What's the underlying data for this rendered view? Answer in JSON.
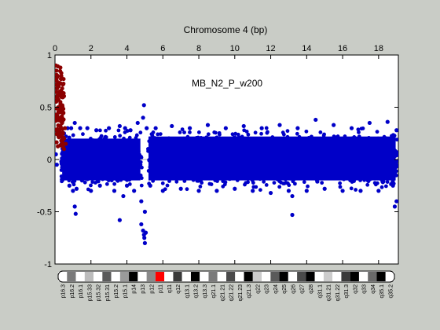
{
  "chart_data": {
    "type": "scatter",
    "title": "Chromosome 4 (bp)",
    "annotation": "MB_N2_P_w200",
    "x_ticks": [
      "0",
      "2",
      "4",
      "6",
      "8",
      "10",
      "12",
      "14",
      "16",
      "18"
    ],
    "y_ticks": [
      "1",
      "0.5",
      "0",
      "-0.5",
      "-1"
    ],
    "xlim": [
      0,
      19.1
    ],
    "ylim": [
      -1,
      1
    ],
    "colors": {
      "main": "#0000c8",
      "highlight": "#8b0000",
      "zero_line": "#a8a8a8"
    },
    "series": [
      {
        "color_role": "main",
        "x": [
          0.05,
          0.1,
          0.4,
          0.5,
          0.7,
          0.8,
          0.9,
          1.0,
          1.1,
          1.2,
          1.4,
          1.5,
          1.8,
          2.0,
          2.3,
          2.5,
          3.0,
          3.3,
          3.6,
          3.8,
          3.9,
          4.0,
          4.2,
          4.4,
          4.6,
          4.8,
          4.9,
          4.95,
          5.0,
          5.05,
          5.1,
          5.3,
          5.6,
          6.0,
          6.5,
          7.0,
          7.5,
          8.0,
          8.5,
          9.0,
          9.5,
          10.0,
          10.5,
          11.0,
          11.5,
          12.0,
          12.5,
          13.0,
          13.2,
          13.5,
          14.0,
          14.5,
          15.0,
          15.5,
          16.0,
          16.5,
          17.0,
          17.5,
          18.0,
          18.5,
          18.8,
          19.0,
          1.1,
          1.15,
          3.6,
          4.8,
          4.9,
          4.95,
          5.0,
          4.97,
          13.2,
          18.9,
          19.0
        ],
        "y": [
          0.05,
          -0.05,
          -0.2,
          0.25,
          0.3,
          -0.25,
          0.3,
          -0.3,
          0.35,
          -0.28,
          0.3,
          -0.2,
          0.3,
          -0.3,
          0.28,
          -0.25,
          0.3,
          -0.3,
          0.32,
          -0.35,
          0.3,
          -0.25,
          0.28,
          -0.3,
          0.35,
          -0.4,
          0.4,
          0.52,
          -0.5,
          -0.7,
          0.3,
          -0.25,
          0.3,
          -0.3,
          0.32,
          -0.28,
          0.3,
          -0.3,
          0.33,
          -0.3,
          0.3,
          -0.28,
          0.32,
          -0.3,
          0.3,
          -0.32,
          0.33,
          -0.3,
          -0.35,
          0.3,
          -0.3,
          0.38,
          -0.28,
          0.33,
          -0.3,
          0.3,
          -0.3,
          0.35,
          -0.3,
          0.36,
          -0.25,
          -0.4,
          -0.45,
          -0.52,
          -0.58,
          -0.62,
          -0.68,
          -0.72,
          -0.8,
          -0.75,
          -0.53,
          -0.45,
          0.28
        ]
      },
      {
        "color_role": "highlight",
        "x": [
          0.05,
          0.08,
          0.1,
          0.12,
          0.15,
          0.18,
          0.2,
          0.22,
          0.25,
          0.28,
          0.3,
          0.32,
          0.35,
          0.38,
          0.4,
          0.42,
          0.45,
          0.5,
          0.55,
          0.6,
          0.15,
          0.25,
          0.35,
          0.45,
          0.5,
          0.3,
          0.2,
          0.4
        ],
        "y": [
          0.9,
          0.85,
          0.75,
          0.6,
          0.8,
          0.5,
          0.7,
          0.45,
          0.65,
          0.4,
          0.55,
          0.3,
          0.6,
          0.35,
          0.5,
          0.25,
          0.45,
          0.2,
          0.3,
          0.15,
          0.38,
          0.28,
          0.18,
          0.12,
          0.1,
          0.88,
          0.22,
          0.68
        ]
      }
    ],
    "ideogram_bands": [
      "p16.3",
      "p16.2",
      "p16.1",
      "p15.33",
      "p15.32",
      "p15.31",
      "p15.2",
      "p15.1",
      "p14",
      "p13",
      "p12",
      "p11",
      "q11",
      "q12",
      "q13.1",
      "q13.2",
      "q13.3",
      "q21.1",
      "q21.21",
      "q21.22",
      "q21.23",
      "q21.3",
      "q22",
      "q23",
      "q24",
      "q25",
      "q26",
      "q27",
      "q28",
      "q31.1",
      "q31.21",
      "q31.22",
      "q31.3",
      "q32",
      "q33",
      "q34",
      "q35.1",
      "q35.2"
    ]
  }
}
